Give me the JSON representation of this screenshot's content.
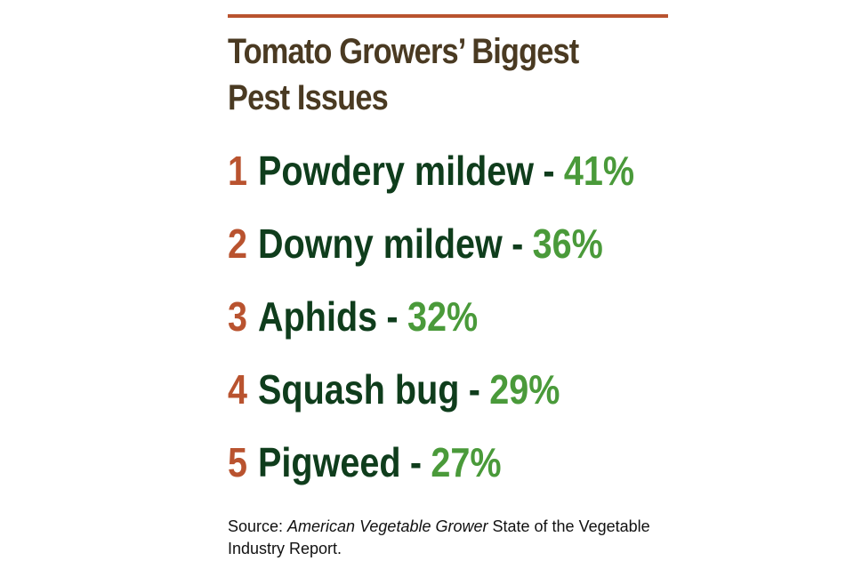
{
  "accent_colors": {
    "rule": "#b9532f",
    "title": "#4a3a22",
    "rank": "#b9532f",
    "name": "#0f3d1c",
    "percent": "#4a9a3a"
  },
  "title": {
    "line1": "Tomato Growers’ Biggest",
    "line2": "Pest Issues"
  },
  "items": [
    {
      "rank": "1",
      "name": "Powdery mildew",
      "separator": "-",
      "percent": "41%"
    },
    {
      "rank": "2",
      "name": "Downy mildew",
      "separator": "-",
      "percent": "36%"
    },
    {
      "rank": "3",
      "name": "Aphids",
      "separator": "-",
      "percent": "32%"
    },
    {
      "rank": "4",
      "name": "Squash bug",
      "separator": "-",
      "percent": "29%"
    },
    {
      "rank": "5",
      "name": "Pigweed",
      "separator": "-",
      "percent": "27%"
    }
  ],
  "source": {
    "prefix": "Source: ",
    "publication": "American Vegetable Grower",
    "suffix": " State of the Vegetable Industry Report."
  }
}
